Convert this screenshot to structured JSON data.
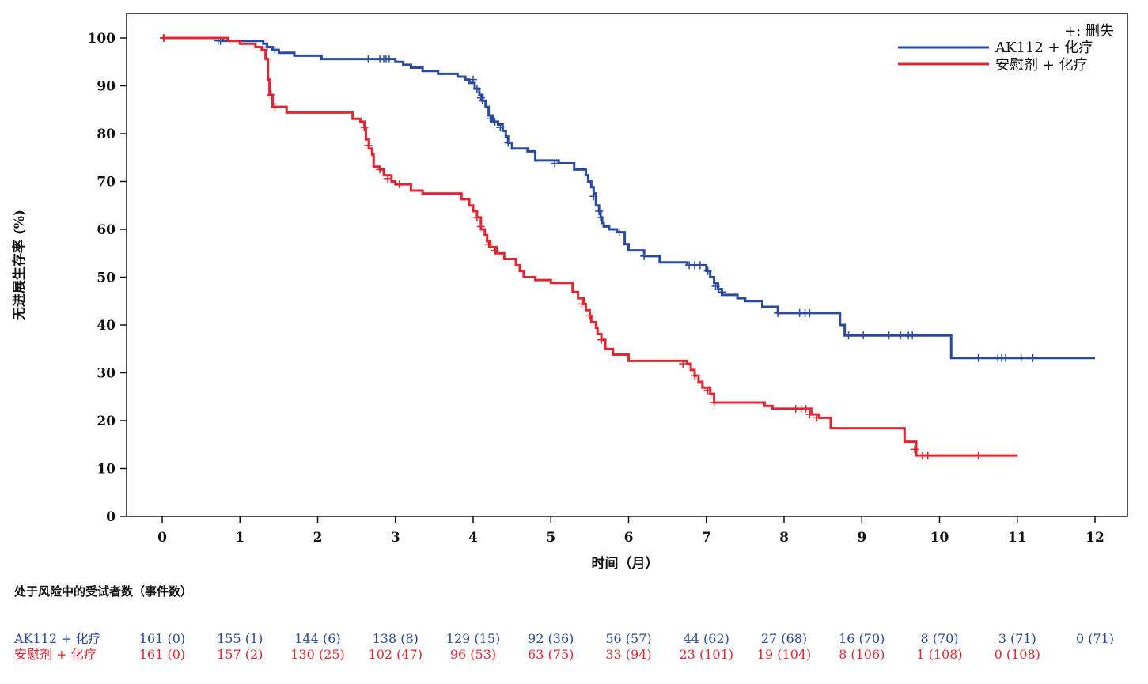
{
  "chart_data": {
    "type": "line",
    "subtype": "kaplan-meier step curve with censor marks",
    "xlabel": "时间（月）",
    "ylabel": "无进展生存率 (%)",
    "xlim": [
      0,
      12
    ],
    "ylim": [
      0,
      100
    ],
    "x_ticks": [
      0,
      1,
      2,
      3,
      4,
      5,
      6,
      7,
      8,
      9,
      10,
      11,
      12
    ],
    "y_ticks": [
      0,
      10,
      20,
      30,
      40,
      50,
      60,
      70,
      80,
      90,
      100
    ],
    "grid": false,
    "legend_position": "top-right",
    "legend": {
      "censor_note": "+:  删失",
      "entries": [
        "AK112 + 化疗",
        "安慰剂 + 化疗"
      ]
    },
    "series": [
      {
        "name": "AK112 + 化疗",
        "color": "#2a4aa0",
        "steps": [
          [
            0,
            100
          ],
          [
            0.78,
            99.4
          ],
          [
            1.3,
            98.8
          ],
          [
            1.35,
            98.1
          ],
          [
            1.42,
            97.5
          ],
          [
            1.5,
            96.9
          ],
          [
            1.7,
            96.3
          ],
          [
            2.05,
            95.6
          ],
          [
            3.0,
            95.0
          ],
          [
            3.1,
            94.4
          ],
          [
            3.2,
            93.8
          ],
          [
            3.35,
            93.1
          ],
          [
            3.55,
            92.5
          ],
          [
            3.8,
            91.9
          ],
          [
            3.9,
            91.3
          ],
          [
            3.95,
            90.6
          ],
          [
            4.02,
            89.4
          ],
          [
            4.08,
            88.1
          ],
          [
            4.12,
            86.9
          ],
          [
            4.16,
            85.6
          ],
          [
            4.2,
            83.8
          ],
          [
            4.25,
            82.5
          ],
          [
            4.32,
            81.9
          ],
          [
            4.38,
            80.6
          ],
          [
            4.42,
            79.4
          ],
          [
            4.45,
            78.1
          ],
          [
            4.5,
            76.9
          ],
          [
            4.7,
            76.3
          ],
          [
            4.8,
            74.4
          ],
          [
            5.1,
            73.8
          ],
          [
            5.3,
            72.5
          ],
          [
            5.45,
            71.3
          ],
          [
            5.48,
            70.0
          ],
          [
            5.52,
            68.8
          ],
          [
            5.55,
            67.5
          ],
          [
            5.58,
            65.0
          ],
          [
            5.62,
            63.8
          ],
          [
            5.64,
            62.5
          ],
          [
            5.66,
            61.3
          ],
          [
            5.68,
            60.6
          ],
          [
            5.75,
            60.0
          ],
          [
            5.85,
            59.4
          ],
          [
            5.95,
            56.9
          ],
          [
            6.0,
            55.6
          ],
          [
            6.2,
            54.4
          ],
          [
            6.4,
            53.1
          ],
          [
            6.75,
            52.5
          ],
          [
            7.0,
            51.3
          ],
          [
            7.05,
            50.0
          ],
          [
            7.1,
            48.8
          ],
          [
            7.15,
            47.5
          ],
          [
            7.2,
            46.3
          ],
          [
            7.4,
            45.6
          ],
          [
            7.5,
            45.0
          ],
          [
            7.72,
            43.8
          ],
          [
            7.92,
            42.5
          ],
          [
            8.72,
            40.0
          ],
          [
            8.78,
            37.8
          ],
          [
            10.15,
            33.1
          ],
          [
            12.0,
            33.1
          ]
        ],
        "censors": [
          [
            0.02,
            100
          ],
          [
            0.72,
            99.4
          ],
          [
            0.75,
            99.4
          ],
          [
            1.35,
            98.1
          ],
          [
            1.45,
            97.5
          ],
          [
            2.65,
            95.6
          ],
          [
            2.8,
            95.6
          ],
          [
            2.85,
            95.6
          ],
          [
            2.88,
            95.6
          ],
          [
            2.92,
            95.6
          ],
          [
            4.0,
            91.3
          ],
          [
            4.05,
            89.4
          ],
          [
            4.1,
            87.5
          ],
          [
            4.12,
            86.9
          ],
          [
            4.22,
            83.1
          ],
          [
            4.28,
            82.5
          ],
          [
            4.35,
            81.3
          ],
          [
            4.45,
            78.1
          ],
          [
            5.05,
            73.8
          ],
          [
            5.55,
            66.9
          ],
          [
            5.62,
            63.8
          ],
          [
            5.64,
            62.5
          ],
          [
            5.88,
            59.4
          ],
          [
            6.2,
            54.4
          ],
          [
            6.78,
            52.5
          ],
          [
            6.85,
            52.5
          ],
          [
            6.92,
            52.5
          ],
          [
            7.02,
            51.3
          ],
          [
            7.12,
            48.1
          ],
          [
            7.16,
            47.5
          ],
          [
            7.2,
            46.9
          ],
          [
            7.92,
            42.5
          ],
          [
            8.2,
            42.5
          ],
          [
            8.27,
            42.5
          ],
          [
            8.33,
            42.5
          ],
          [
            8.83,
            37.8
          ],
          [
            9.02,
            37.8
          ],
          [
            9.35,
            37.8
          ],
          [
            9.5,
            37.8
          ],
          [
            9.6,
            37.8
          ],
          [
            9.65,
            37.8
          ],
          [
            10.5,
            33.1
          ],
          [
            10.75,
            33.1
          ],
          [
            10.8,
            33.1
          ],
          [
            10.85,
            33.1
          ],
          [
            11.05,
            33.1
          ],
          [
            11.2,
            33.1
          ]
        ]
      },
      {
        "name": "安慰剂 + 化疗",
        "color": "#e22530",
        "steps": [
          [
            0,
            100
          ],
          [
            0.85,
            99.4
          ],
          [
            1.0,
            98.8
          ],
          [
            1.2,
            98.1
          ],
          [
            1.28,
            97.5
          ],
          [
            1.33,
            95.6
          ],
          [
            1.36,
            91.3
          ],
          [
            1.38,
            88.1
          ],
          [
            1.42,
            85.6
          ],
          [
            1.6,
            84.4
          ],
          [
            2.45,
            83.1
          ],
          [
            2.55,
            82.5
          ],
          [
            2.6,
            81.3
          ],
          [
            2.62,
            78.8
          ],
          [
            2.66,
            76.9
          ],
          [
            2.7,
            75.6
          ],
          [
            2.72,
            73.1
          ],
          [
            2.8,
            72.5
          ],
          [
            2.85,
            71.3
          ],
          [
            2.95,
            70.0
          ],
          [
            3.0,
            69.4
          ],
          [
            3.2,
            68.1
          ],
          [
            3.35,
            67.5
          ],
          [
            3.85,
            66.3
          ],
          [
            3.95,
            65.0
          ],
          [
            4.0,
            63.8
          ],
          [
            4.05,
            62.5
          ],
          [
            4.1,
            60.0
          ],
          [
            4.15,
            58.8
          ],
          [
            4.18,
            57.5
          ],
          [
            4.22,
            56.3
          ],
          [
            4.3,
            55.0
          ],
          [
            4.4,
            53.8
          ],
          [
            4.55,
            52.5
          ],
          [
            4.6,
            51.3
          ],
          [
            4.65,
            50.0
          ],
          [
            4.8,
            49.4
          ],
          [
            5.0,
            48.8
          ],
          [
            5.28,
            46.9
          ],
          [
            5.35,
            45.6
          ],
          [
            5.42,
            44.4
          ],
          [
            5.45,
            43.1
          ],
          [
            5.5,
            41.9
          ],
          [
            5.52,
            40.6
          ],
          [
            5.58,
            39.4
          ],
          [
            5.6,
            38.1
          ],
          [
            5.65,
            36.9
          ],
          [
            5.7,
            35.0
          ],
          [
            5.8,
            33.8
          ],
          [
            6.0,
            32.5
          ],
          [
            6.75,
            31.9
          ],
          [
            6.8,
            30.6
          ],
          [
            6.85,
            29.4
          ],
          [
            6.9,
            28.1
          ],
          [
            6.95,
            26.9
          ],
          [
            7.05,
            25.6
          ],
          [
            7.1,
            23.8
          ],
          [
            7.75,
            23.1
          ],
          [
            7.85,
            22.5
          ],
          [
            8.35,
            21.3
          ],
          [
            8.45,
            20.6
          ],
          [
            8.6,
            18.4
          ],
          [
            9.55,
            15.6
          ],
          [
            9.7,
            12.7
          ],
          [
            11.0,
            12.7
          ]
        ],
        "censors": [
          [
            0.02,
            100
          ],
          [
            1.4,
            88.1
          ],
          [
            1.45,
            85.6
          ],
          [
            2.6,
            81.3
          ],
          [
            2.65,
            77.5
          ],
          [
            2.8,
            72.5
          ],
          [
            2.9,
            70.6
          ],
          [
            3.05,
            69.4
          ],
          [
            4.05,
            62.5
          ],
          [
            4.1,
            60.6
          ],
          [
            4.2,
            56.9
          ],
          [
            4.28,
            55.6
          ],
          [
            5.4,
            44.4
          ],
          [
            5.5,
            41.9
          ],
          [
            5.65,
            36.9
          ],
          [
            6.7,
            31.9
          ],
          [
            6.85,
            29.4
          ],
          [
            7.02,
            26.3
          ],
          [
            7.1,
            23.8
          ],
          [
            8.15,
            22.5
          ],
          [
            8.22,
            22.5
          ],
          [
            8.28,
            22.5
          ],
          [
            8.33,
            21.3
          ],
          [
            8.42,
            20.6
          ],
          [
            9.68,
            14.0
          ],
          [
            9.78,
            12.7
          ],
          [
            9.85,
            12.7
          ],
          [
            10.5,
            12.7
          ]
        ]
      }
    ],
    "risk_table": {
      "title": "处于风险中的受试者数（事件数）",
      "timepoints": [
        0,
        1,
        2,
        3,
        4,
        5,
        6,
        7,
        8,
        9,
        10,
        11,
        12
      ],
      "rows": [
        {
          "label": "AK112 + 化疗",
          "color": "#2a4aa0",
          "values": [
            "161 (0)",
            "155 (1)",
            "144 (6)",
            "138 (8)",
            "129 (15)",
            "92 (36)",
            "56 (57)",
            "44 (62)",
            "27 (68)",
            "16 (70)",
            "8 (70)",
            "3 (71)",
            "0 (71)"
          ]
        },
        {
          "label": "安慰剂 + 化疗",
          "color": "#e22530",
          "values": [
            "161 (0)",
            "157 (2)",
            "130 (25)",
            "102 (47)",
            "96 (53)",
            "63 (75)",
            "33 (94)",
            "23 (101)",
            "19 (104)",
            "8 (106)",
            "1 (108)",
            "0 (108)"
          ]
        }
      ]
    }
  }
}
